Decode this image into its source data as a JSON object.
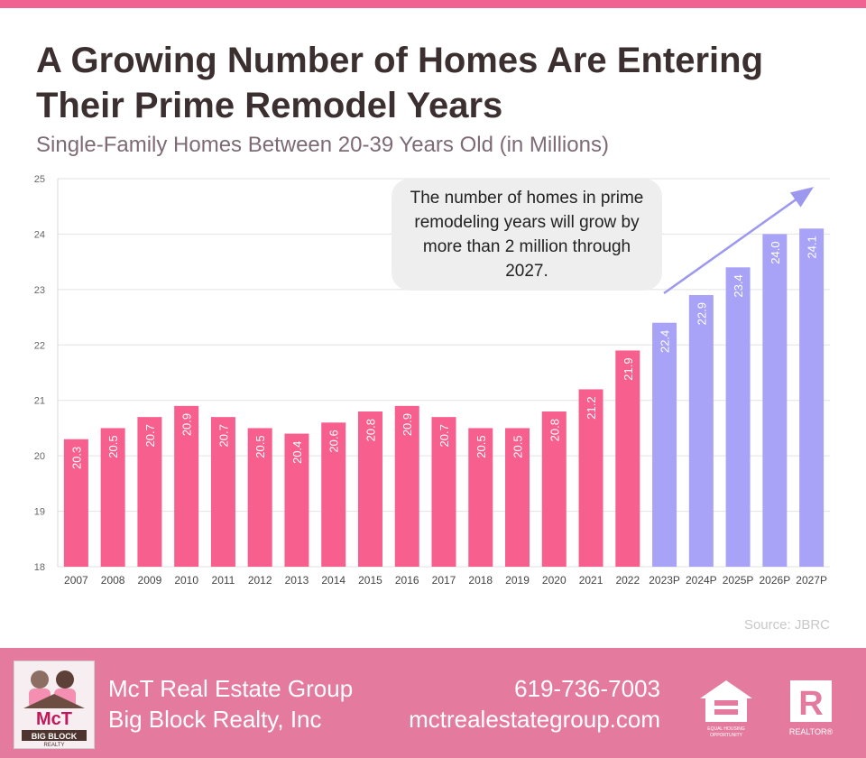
{
  "title": "A Growing Number of Homes Are Entering Their Prime Remodel Years",
  "subtitle": "Single-Family Homes Between 20-39 Years Old (in Millions)",
  "source": "Source: JBRC",
  "annotation": "The number of homes in prime remodeling years will grow by more than 2 million through 2027.",
  "colors": {
    "accent": "#f06292",
    "actual": "#f75f8e",
    "projected": "#a8a3f7",
    "arrow": "#9d98ef",
    "footer": "#e47b9e"
  },
  "footer": {
    "company_line1": "McT Real Estate Group",
    "company_line2": "Big Block Realty, Inc",
    "phone": "619-736-7003",
    "website": "mctrealestategroup.com",
    "logo_text": "McT",
    "logo_subtext": "BIG BLOCK",
    "logo_subtext2": "REALTY",
    "eho_text": "EQUAL HOUSING OPPORTUNITY",
    "realtor_text": "REALTOR®"
  },
  "chart_data": {
    "type": "bar",
    "categories": [
      "2007",
      "2008",
      "2009",
      "2010",
      "2011",
      "2012",
      "2013",
      "2014",
      "2015",
      "2016",
      "2017",
      "2018",
      "2019",
      "2020",
      "2021",
      "2022",
      "2023P",
      "2024P",
      "2025P",
      "2026P",
      "2027P"
    ],
    "values": [
      20.3,
      20.5,
      20.7,
      20.9,
      20.7,
      20.5,
      20.4,
      20.6,
      20.8,
      20.9,
      20.7,
      20.5,
      20.5,
      20.8,
      21.2,
      21.9,
      22.4,
      22.9,
      23.4,
      24.0,
      24.1
    ],
    "value_labels": [
      "20.3",
      "20.5",
      "20.7",
      "20.9",
      "20.7",
      "20.5",
      "20.4",
      "20.6",
      "20.8",
      "20.9",
      "20.7",
      "20.5",
      "20.5",
      "20.8",
      "21.2",
      "21.9",
      "22.4",
      "22.9",
      "23.4",
      "24.0",
      "24.1"
    ],
    "projected_from_index": 16,
    "ylim": [
      18,
      25
    ],
    "yticks": [
      "18",
      "19",
      "20",
      "21",
      "22",
      "23",
      "24",
      "25"
    ],
    "grid": true,
    "xlabel": "",
    "ylabel": ""
  }
}
